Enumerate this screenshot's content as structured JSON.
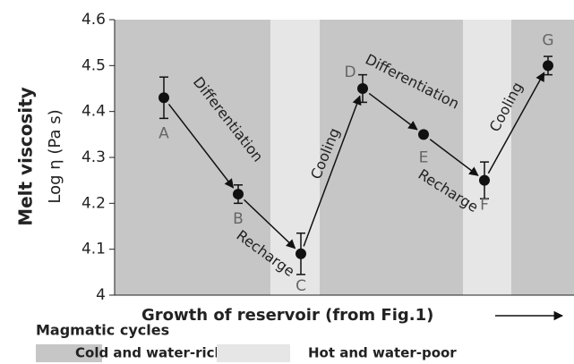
{
  "chart_data": {
    "type": "line",
    "y_label_title": "Melt viscosity",
    "y_label": "Log η (Pa s)",
    "x_label": "Growth of reservoir (from Fig.1)",
    "legend_title": "Magmatic cycles",
    "legend": [
      {
        "name": "Cold and water-rich",
        "color": "#c6c6c6"
      },
      {
        "name": "Hot and water-poor",
        "color": "#e6e6e6"
      }
    ],
    "categories": [
      "A",
      "B",
      "C",
      "D",
      "E",
      "F",
      "G"
    ],
    "values": [
      4.43,
      4.22,
      4.09,
      4.45,
      4.35,
      4.25,
      4.5
    ],
    "errors": [
      0.045,
      0.02,
      0.045,
      0.03,
      0,
      0.04,
      0.02
    ],
    "color": "#111111",
    "annotations": [
      "Differentiation",
      "Recharge",
      "Cooling",
      "Differentiation",
      "Recharge",
      "Cooling"
    ],
    "ylim": [
      4,
      4.6
    ],
    "yticks": [
      4,
      4.1,
      4.2,
      4.3,
      4.4,
      4.5,
      4.6
    ]
  }
}
